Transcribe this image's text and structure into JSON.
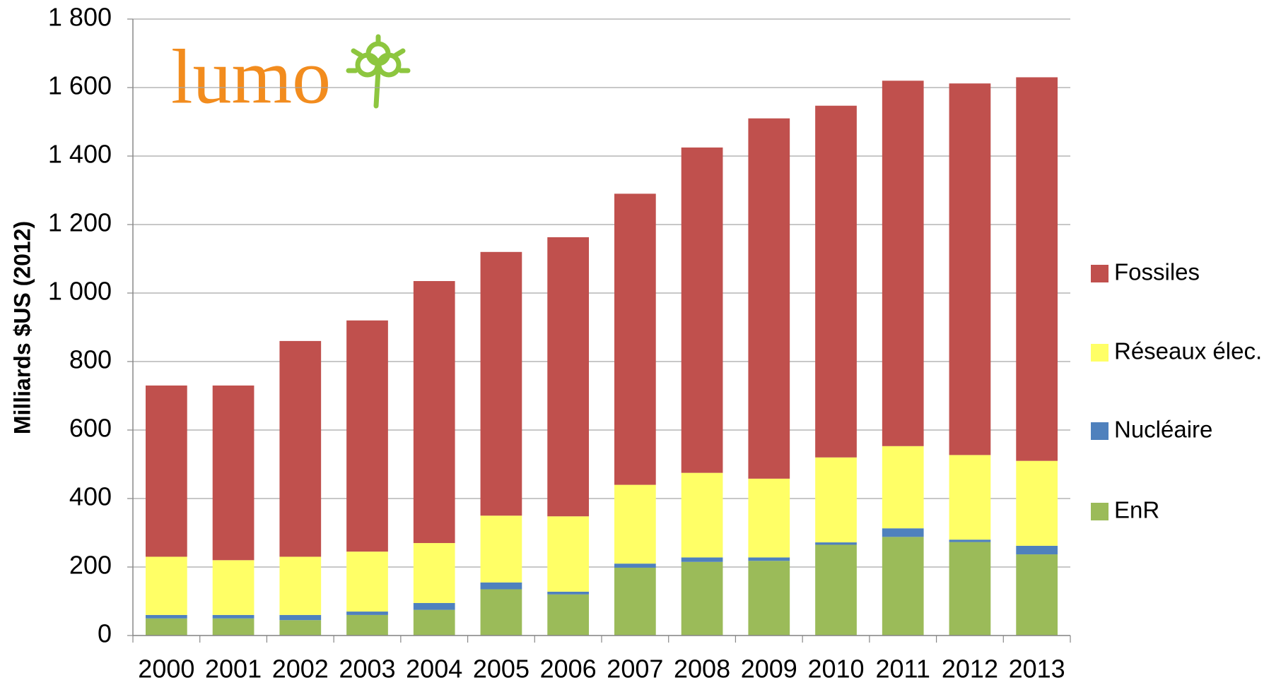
{
  "chart_data": {
    "type": "stacked-bar",
    "logo": "lumo",
    "y_label": "Milliards $US (2012)",
    "categories": [
      "2000",
      "2001",
      "2002",
      "2003",
      "2004",
      "2005",
      "2006",
      "2007",
      "2008",
      "2009",
      "2010",
      "2011",
      "2012",
      "2013"
    ],
    "series": [
      {
        "name": "EnR",
        "color": "#9bbb59",
        "values": [
          50,
          50,
          45,
          60,
          75,
          135,
          120,
          198,
          215,
          218,
          265,
          288,
          273,
          237
        ]
      },
      {
        "name": "Nucléaire",
        "color": "#4f81bd",
        "values": [
          10,
          10,
          15,
          10,
          20,
          20,
          8,
          12,
          13,
          10,
          7,
          25,
          7,
          25
        ]
      },
      {
        "name": "Réseaux élec.",
        "color": "#ffff66",
        "values": [
          170,
          160,
          170,
          175,
          175,
          195,
          220,
          230,
          247,
          230,
          248,
          240,
          247,
          248
        ]
      },
      {
        "name": "Fossiles",
        "color": "#c0504d",
        "values": [
          500,
          510,
          630,
          675,
          765,
          770,
          815,
          850,
          950,
          1052,
          1027,
          1067,
          1085,
          1120
        ]
      }
    ],
    "ylim": [
      0,
      1800
    ],
    "yticks": [
      0,
      200,
      400,
      600,
      800,
      {
        "value": 1000,
        "label": "1 000"
      },
      {
        "value": 1200,
        "label": "1 200"
      },
      {
        "value": 1400,
        "label": "1 400"
      },
      {
        "value": 1600,
        "label": "1 600"
      },
      {
        "value": 1800,
        "label": "1 800"
      }
    ],
    "grid": true,
    "legend": "right"
  }
}
